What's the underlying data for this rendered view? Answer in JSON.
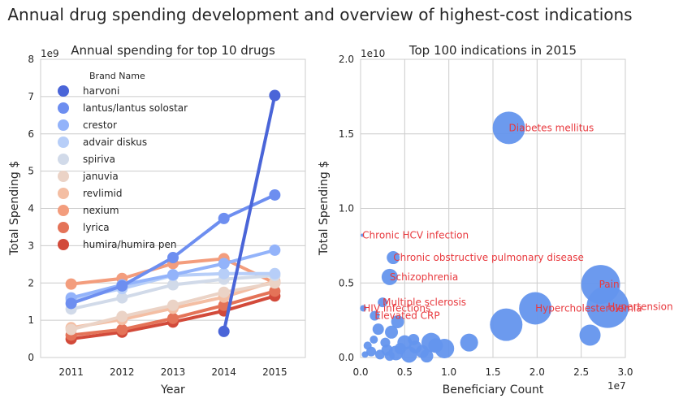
{
  "suptitle": "Annual drug spending development and overview of highest-cost indications",
  "chart_data": [
    {
      "type": "line",
      "title": "Annual spending for top 10 drugs",
      "xlabel": "Year",
      "ylabel": "Total Spending $",
      "y_scale_label": "1e9",
      "categories": [
        "2011",
        "2012",
        "2013",
        "2014",
        "2015"
      ],
      "ylim": [
        0,
        8
      ],
      "yticks": [
        "0",
        "1",
        "2",
        "3",
        "4",
        "5",
        "6",
        "7",
        "8"
      ],
      "legend_title": "Brand Name",
      "legend_position": "upper-left",
      "series": [
        {
          "name": "harvoni",
          "color": "#4a65d8",
          "values": [
            null,
            null,
            null,
            0.7,
            7.03
          ]
        },
        {
          "name": "lantus/lantus solostar",
          "color": "#6d8ef0",
          "values": [
            1.45,
            1.92,
            2.68,
            3.73,
            4.36
          ]
        },
        {
          "name": "crestor",
          "color": "#93b3fa",
          "values": [
            1.6,
            1.95,
            2.22,
            2.52,
            2.88
          ]
        },
        {
          "name": "advair diskus",
          "color": "#b7cef8",
          "values": [
            1.55,
            1.85,
            2.2,
            2.25,
            2.25
          ]
        },
        {
          "name": "spiriva",
          "color": "#d1dae9",
          "values": [
            1.3,
            1.6,
            1.95,
            2.1,
            2.2
          ]
        },
        {
          "name": "januvia",
          "color": "#ebd3c6",
          "values": [
            0.75,
            1.1,
            1.4,
            1.75,
            2.0
          ]
        },
        {
          "name": "revlimid",
          "color": "#f4bea3",
          "values": [
            0.8,
            1.02,
            1.32,
            1.62,
            2.05
          ]
        },
        {
          "name": "nexium",
          "color": "#f39d7d",
          "values": [
            1.97,
            2.12,
            2.52,
            2.65,
            2.0
          ]
        },
        {
          "name": "lyrica",
          "color": "#e47358",
          "values": [
            0.6,
            0.75,
            1.05,
            1.4,
            1.78
          ]
        },
        {
          "name": "humira/humira pen",
          "color": "#d24a3a",
          "values": [
            0.5,
            0.68,
            0.95,
            1.25,
            1.65
          ]
        }
      ]
    },
    {
      "type": "scatter",
      "title": "Top 100 indications in 2015",
      "xlabel": "Beneficiary Count",
      "ylabel": "Total Spending $",
      "x_scale_label": "1e7",
      "y_scale_label": "1e10",
      "xlim": [
        0,
        3.0
      ],
      "ylim": [
        0,
        2.0
      ],
      "xticks": [
        "0.0",
        "0.5",
        "1.0",
        "1.5",
        "2.0",
        "2.5",
        "3.0"
      ],
      "yticks": [
        "0.0",
        "0.5",
        "1.0",
        "1.5",
        "2.0"
      ],
      "point_color": "#6495ed",
      "label_color": "#e8383d",
      "labeled_points": [
        {
          "label": "Diabetes mellitus",
          "x": 1.68,
          "y": 1.54,
          "size": 20
        },
        {
          "label": "Chronic HCV infection",
          "x": 0.02,
          "y": 0.82,
          "size": 2
        },
        {
          "label": "Chronic obstructive pulmonary disease",
          "x": 0.37,
          "y": 0.67,
          "size": 8
        },
        {
          "label": "Schizophrenia",
          "x": 0.33,
          "y": 0.54,
          "size": 10
        },
        {
          "label": "Pain",
          "x": 2.72,
          "y": 0.49,
          "size": 24
        },
        {
          "label": "Hypercholesterolemia",
          "x": 1.98,
          "y": 0.33,
          "size": 20
        },
        {
          "label": "Hypertension",
          "x": 2.8,
          "y": 0.34,
          "size": 26
        },
        {
          "label": "Multiple sclerosis",
          "x": 0.25,
          "y": 0.37,
          "size": 6
        },
        {
          "label": "HIV infections",
          "x": 0.03,
          "y": 0.33,
          "size": 4
        },
        {
          "label": "Elevated CRP",
          "x": 0.16,
          "y": 0.28,
          "size": 6
        }
      ],
      "other_points": [
        {
          "x": 1.65,
          "y": 0.22,
          "size": 20
        },
        {
          "x": 2.6,
          "y": 0.15,
          "size": 13
        },
        {
          "x": 1.23,
          "y": 0.1,
          "size": 11
        },
        {
          "x": 0.8,
          "y": 0.1,
          "size": 12
        },
        {
          "x": 0.42,
          "y": 0.24,
          "size": 8
        },
        {
          "x": 0.2,
          "y": 0.19,
          "size": 7
        },
        {
          "x": 0.35,
          "y": 0.17,
          "size": 8
        },
        {
          "x": 0.5,
          "y": 0.1,
          "size": 9
        },
        {
          "x": 0.62,
          "y": 0.07,
          "size": 8
        },
        {
          "x": 0.95,
          "y": 0.06,
          "size": 12
        },
        {
          "x": 0.3,
          "y": 0.05,
          "size": 7
        },
        {
          "x": 0.12,
          "y": 0.04,
          "size": 6
        },
        {
          "x": 0.4,
          "y": 0.03,
          "size": 9
        },
        {
          "x": 0.55,
          "y": 0.02,
          "size": 10
        },
        {
          "x": 0.7,
          "y": 0.04,
          "size": 8
        },
        {
          "x": 0.22,
          "y": 0.02,
          "size": 6
        },
        {
          "x": 0.08,
          "y": 0.08,
          "size": 5
        },
        {
          "x": 0.85,
          "y": 0.08,
          "size": 9
        },
        {
          "x": 0.45,
          "y": 0.06,
          "size": 7
        },
        {
          "x": 0.28,
          "y": 0.1,
          "size": 6
        },
        {
          "x": 0.15,
          "y": 0.12,
          "size": 5
        },
        {
          "x": 0.6,
          "y": 0.12,
          "size": 7
        },
        {
          "x": 0.05,
          "y": 0.02,
          "size": 4
        },
        {
          "x": 0.33,
          "y": 0.01,
          "size": 6
        },
        {
          "x": 0.75,
          "y": 0.01,
          "size": 8
        }
      ]
    }
  ]
}
